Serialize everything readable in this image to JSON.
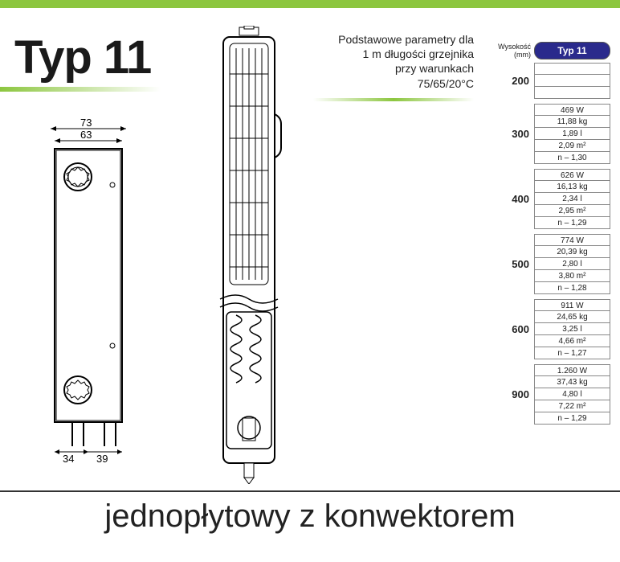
{
  "title": "Typ 11",
  "notes": {
    "line1": "Podstawowe parametry dla",
    "line2": "1 m długości grzejnika",
    "line3": "przy warunkach",
    "line4": "75/65/20°C"
  },
  "table": {
    "col_header_label": "Wysokość (mm)",
    "badge": "Typ 11",
    "badge_bg": "#2a2a8c",
    "badge_fg": "#ffffff",
    "groups": [
      {
        "height": "200",
        "rows": [
          "",
          "",
          ""
        ]
      },
      {
        "height": "300",
        "rows": [
          "469 W",
          "11,88 kg",
          "1,89 l",
          "2,09 m²",
          "n – 1,30"
        ]
      },
      {
        "height": "400",
        "rows": [
          "626 W",
          "16,13 kg",
          "2,34 l",
          "2,95 m²",
          "n – 1,29"
        ]
      },
      {
        "height": "500",
        "rows": [
          "774 W",
          "20,39 kg",
          "2,80 l",
          "3,80 m²",
          "n – 1,28"
        ]
      },
      {
        "height": "600",
        "rows": [
          "911 W",
          "24,65 kg",
          "3,25 l",
          "4,66 m²",
          "n – 1,27"
        ]
      },
      {
        "height": "900",
        "rows": [
          "1.260 W",
          "37,43 kg",
          "4,80 l",
          "7,22 m²",
          "n – 1,29"
        ]
      }
    ]
  },
  "dimensions": {
    "outer_width": "73",
    "inner_width": "63",
    "left_pipe": "34",
    "right_pipe": "39"
  },
  "bottom_text": "jednopłytowy z konwektorem",
  "colors": {
    "green": "#8cc63f",
    "line": "#333333",
    "border": "#888888"
  }
}
